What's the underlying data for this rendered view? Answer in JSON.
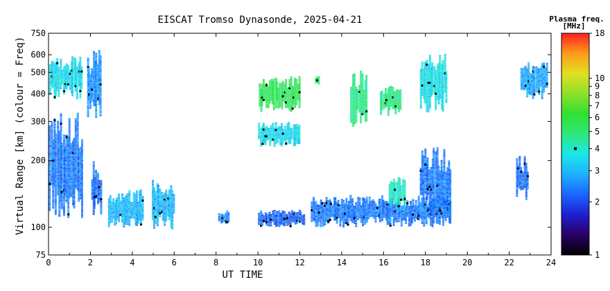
{
  "chart_data": {
    "type": "scatter",
    "title": "EISCAT Tromso Dynasonde, 2025-04-21",
    "xlabel": "UT TIME",
    "ylabel": "Virtual Range [km] (colour = Freq)",
    "xlim": [
      0,
      24
    ],
    "ylim": [
      75,
      750
    ],
    "yscale": "log",
    "x_ticks": [
      0,
      2,
      4,
      6,
      8,
      10,
      12,
      14,
      16,
      18,
      20,
      22,
      24
    ],
    "y_ticks": [
      75,
      100,
      200,
      300,
      400,
      500,
      600,
      750
    ],
    "grid": false,
    "colorbar": {
      "title": "Plasma freq.",
      "units": "[MHz]",
      "scale": "log",
      "range": [
        1,
        18
      ],
      "ticks": [
        1,
        2,
        3,
        4,
        5,
        6,
        7,
        8,
        9,
        10,
        18
      ],
      "colors": [
        "#000000",
        "#2a0066",
        "#1f1fd0",
        "#1a66ff",
        "#1fb0ff",
        "#19e8e8",
        "#2ee87a",
        "#31e031",
        "#8ee02a",
        "#e0e020",
        "#ff9a1a",
        "#ff2020"
      ],
      "marker_value": 4
    },
    "clusters": [
      {
        "t_range": [
          0,
          1.6
        ],
        "h_range": [
          380,
          600
        ],
        "freq": 3.5
      },
      {
        "t_range": [
          0,
          1.6
        ],
        "h_range": [
          110,
          330
        ],
        "freq": 2.4
      },
      {
        "t_range": [
          1.8,
          2.5
        ],
        "h_range": [
          300,
          630
        ],
        "freq": 2.6
      },
      {
        "t_range": [
          2.0,
          2.5
        ],
        "h_range": [
          110,
          200
        ],
        "freq": 2.3
      },
      {
        "t_range": [
          2.8,
          4.5
        ],
        "h_range": [
          98,
          150
        ],
        "freq": 3.0
      },
      {
        "t_range": [
          4.9,
          6.0
        ],
        "h_range": [
          98,
          165
        ],
        "freq": 3.0
      },
      {
        "t_range": [
          8.1,
          8.6
        ],
        "h_range": [
          103,
          120
        ],
        "freq": 2.5
      },
      {
        "t_range": [
          10.0,
          12.0
        ],
        "h_range": [
          330,
          480
        ],
        "freq": 5.5
      },
      {
        "t_range": [
          10.0,
          12.0
        ],
        "h_range": [
          230,
          300
        ],
        "freq": 3.5
      },
      {
        "t_range": [
          10.0,
          12.2
        ],
        "h_range": [
          100,
          120
        ],
        "freq": 2.2
      },
      {
        "t_range": [
          12.7,
          12.9
        ],
        "h_range": [
          440,
          480
        ],
        "freq": 5.0
      },
      {
        "t_range": [
          12.5,
          19.2
        ],
        "h_range": [
          100,
          140
        ],
        "freq": 2.4
      },
      {
        "t_range": [
          14.4,
          15.2
        ],
        "h_range": [
          280,
          510
        ],
        "freq": 4.8
      },
      {
        "t_range": [
          15.8,
          16.8
        ],
        "h_range": [
          320,
          440
        ],
        "freq": 4.8
      },
      {
        "t_range": [
          16.2,
          17.0
        ],
        "h_range": [
          120,
          170
        ],
        "freq": 4.0
      },
      {
        "t_range": [
          17.7,
          19.0
        ],
        "h_range": [
          330,
          620
        ],
        "freq": 3.6
      },
      {
        "t_range": [
          17.7,
          19.2
        ],
        "h_range": [
          110,
          230
        ],
        "freq": 2.4
      },
      {
        "t_range": [
          22.3,
          22.9
        ],
        "h_range": [
          130,
          210
        ],
        "freq": 2.3
      },
      {
        "t_range": [
          22.5,
          23.8
        ],
        "h_range": [
          380,
          560
        ],
        "freq": 2.8
      }
    ]
  }
}
